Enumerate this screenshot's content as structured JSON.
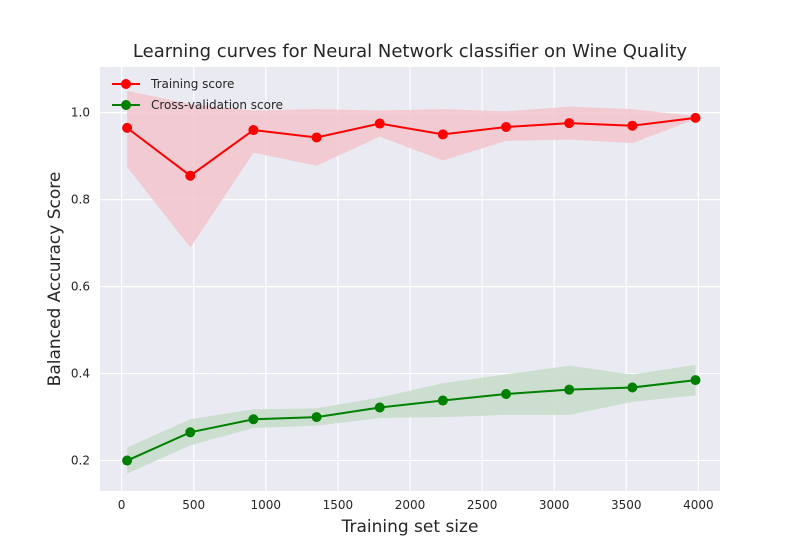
{
  "chart_data": {
    "type": "line",
    "title": "Learning curves for Neural Network classifier on Wine Quality",
    "xlabel": "Training set size",
    "ylabel": "Balanced Accuracy Score",
    "xlim": [
      -150,
      4150
    ],
    "ylim": [
      0.13,
      1.105
    ],
    "xticks": [
      0,
      500,
      1000,
      1500,
      2000,
      2500,
      3000,
      3500,
      4000
    ],
    "xtick_labels": [
      "0",
      "500",
      "1000",
      "1500",
      "2000",
      "2500",
      "3000",
      "3500",
      "4000"
    ],
    "yticks": [
      0.2,
      0.4,
      0.6,
      0.8,
      1.0
    ],
    "ytick_labels": [
      "0.2",
      "0.4",
      "0.6",
      "0.8",
      "1.0"
    ],
    "grid": true,
    "legend_position": "top-left",
    "background_color": "#eaeaf2",
    "grid_color": "#ffffff",
    "x": [
      38,
      476,
      914,
      1352,
      1790,
      2228,
      2666,
      3104,
      3542,
      3980
    ],
    "series": [
      {
        "name": "Training score",
        "color": "#ff0000",
        "band_color": "#f3c4cc",
        "values": [
          0.965,
          0.855,
          0.96,
          0.943,
          0.975,
          0.95,
          0.967,
          0.976,
          0.97,
          0.988
        ],
        "lower": [
          0.875,
          0.69,
          0.908,
          0.878,
          0.945,
          0.89,
          0.935,
          0.938,
          0.93,
          0.985
        ],
        "upper": [
          1.05,
          1.02,
          1.005,
          1.008,
          1.005,
          1.008,
          1.003,
          1.014,
          1.008,
          0.992
        ]
      },
      {
        "name": "Cross-validation score",
        "color": "#008000",
        "band_color": "#c6dcc9",
        "values": [
          0.2,
          0.265,
          0.295,
          0.3,
          0.322,
          0.338,
          0.353,
          0.363,
          0.368,
          0.385
        ],
        "lower": [
          0.17,
          0.235,
          0.275,
          0.28,
          0.298,
          0.3,
          0.305,
          0.305,
          0.335,
          0.35
        ],
        "upper": [
          0.23,
          0.295,
          0.318,
          0.32,
          0.345,
          0.378,
          0.398,
          0.418,
          0.398,
          0.42
        ]
      }
    ]
  }
}
